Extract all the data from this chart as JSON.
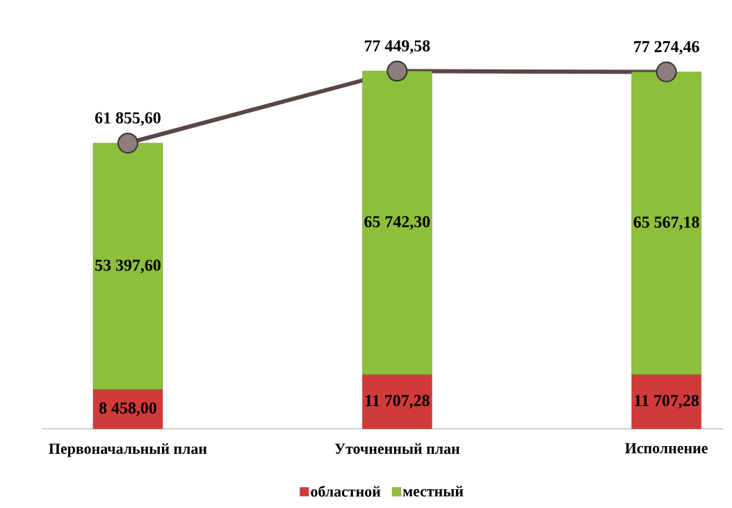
{
  "chart_data": {
    "type": "bar",
    "stacked": true,
    "categories": [
      "Первоначальный план",
      "Уточненный план",
      "Исполнение"
    ],
    "series": [
      {
        "name": "областной",
        "color": "#d23a3a",
        "values": [
          8458,
          11707.28,
          11707.28
        ],
        "value_labels": [
          "8 458,00",
          "11 707,28",
          "11 707,28"
        ]
      },
      {
        "name": "местный",
        "color": "#8dbf3b",
        "values": [
          53397.6,
          65742.3,
          65567.18
        ],
        "value_labels": [
          "53 397,60",
          "65 742,30",
          "65 567,18"
        ]
      },
      {
        "type": "line",
        "color": "#5c4545",
        "marker": "circle",
        "values": [
          61855.6,
          77449.58,
          77274.46
        ],
        "value_labels": [
          "61 855,60",
          "77 449,58",
          "77 274,46"
        ]
      }
    ],
    "tick_labels": "x",
    "legend": "bottom"
  }
}
